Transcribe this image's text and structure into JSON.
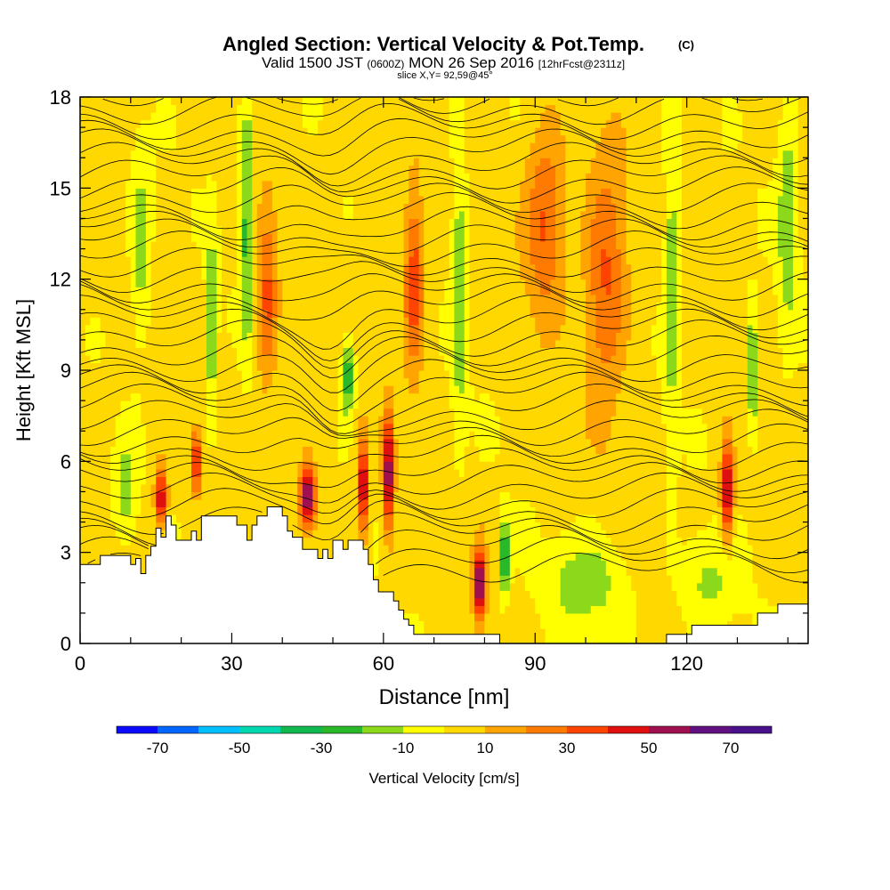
{
  "chart_data": {
    "type": "heatmap",
    "title": "Angled Section: Vertical Velocity & Pot.Temp.",
    "title_suffix": "(C)",
    "subtitle": {
      "prefix": "Valid 1500 JST",
      "utc": "(0600Z)",
      "date": "MON 26 Sep 2016",
      "fcst": "[12hrFcst@2311z]"
    },
    "slice_label": "slice X,Y= 92,59@45°",
    "xlabel": "Distance [nm]",
    "ylabel": "Height [Kft MSL]",
    "xlim": [
      0,
      144
    ],
    "ylim": [
      0,
      18
    ],
    "x_ticks": [
      "0",
      "30",
      "60",
      "90",
      "120"
    ],
    "x_tick_values": [
      0,
      30,
      60,
      90,
      120
    ],
    "y_ticks": [
      "0",
      "3",
      "6",
      "9",
      "12",
      "15",
      "18"
    ],
    "y_tick_values": [
      0,
      3,
      6,
      9,
      12,
      15,
      18
    ],
    "colorbar": {
      "label": "Vertical Velocity [cm/s]",
      "tick_labels": [
        "-70",
        "-50",
        "-30",
        "-10",
        "10",
        "30",
        "50",
        "70"
      ],
      "tick_values": [
        -70,
        -50,
        -30,
        -10,
        10,
        30,
        50,
        70
      ],
      "range": [
        -80,
        80
      ],
      "step": 10,
      "colors": [
        "#0a0aff",
        "#0066ff",
        "#00c0ff",
        "#00d8b0",
        "#10b850",
        "#2ab82a",
        "#8cd81a",
        "#ffff00",
        "#ffd800",
        "#ffa400",
        "#ff7a00",
        "#ff4400",
        "#e01010",
        "#a01050",
        "#601080",
        "#48108a"
      ]
    },
    "terrain_height_kft": [
      [
        0,
        2.6
      ],
      [
        4,
        2.9
      ],
      [
        8,
        2.9
      ],
      [
        10,
        2.6
      ],
      [
        11,
        2.8
      ],
      [
        12,
        2.3
      ],
      [
        13,
        2.9
      ],
      [
        14,
        3.2
      ],
      [
        15,
        3.8
      ],
      [
        16,
        3.5
      ],
      [
        17,
        4.2
      ],
      [
        18,
        3.9
      ],
      [
        19,
        3.4
      ],
      [
        21,
        3.4
      ],
      [
        22,
        3.7
      ],
      [
        23,
        3.4
      ],
      [
        24,
        4.2
      ],
      [
        28,
        4.2
      ],
      [
        31,
        3.9
      ],
      [
        33,
        3.4
      ],
      [
        34,
        3.9
      ],
      [
        35,
        4.2
      ],
      [
        37,
        4.5
      ],
      [
        39,
        4.5
      ],
      [
        40,
        4.2
      ],
      [
        41,
        3.7
      ],
      [
        42,
        3.5
      ],
      [
        44,
        3.1
      ],
      [
        46,
        3.1
      ],
      [
        47,
        2.8
      ],
      [
        48,
        3.1
      ],
      [
        49,
        2.8
      ],
      [
        50,
        3.4
      ],
      [
        52,
        3.1
      ],
      [
        53,
        3.4
      ],
      [
        56,
        3.1
      ],
      [
        57,
        2.6
      ],
      [
        58,
        2.1
      ],
      [
        59,
        1.7
      ],
      [
        61,
        1.7
      ],
      [
        62,
        1.4
      ],
      [
        63,
        1.1
      ],
      [
        64,
        0.8
      ],
      [
        65,
        0.6
      ],
      [
        66,
        0.3
      ],
      [
        80,
        0.3
      ],
      [
        83,
        0.0
      ],
      [
        114,
        0.0
      ],
      [
        116,
        0.3
      ],
      [
        120,
        0.3
      ],
      [
        121,
        0.6
      ],
      [
        131,
        0.6
      ],
      [
        134,
        1.0
      ],
      [
        137,
        1.0
      ],
      [
        138,
        1.3
      ],
      [
        144,
        1.3
      ]
    ],
    "velocity_features": [
      {
        "x": 16,
        "y": 4.8,
        "w_cm_s": 50,
        "sx": 1.2,
        "sy": 1.0
      },
      {
        "x": 23,
        "y": 6.0,
        "w_cm_s": 55,
        "sx": 0.8,
        "sy": 1.0
      },
      {
        "x": 45,
        "y": 4.9,
        "w_cm_s": 60,
        "sx": 1.6,
        "sy": 1.1
      },
      {
        "x": 56,
        "y": 5.2,
        "w_cm_s": 55,
        "sx": 1.0,
        "sy": 1.6
      },
      {
        "x": 61,
        "y": 5.6,
        "w_cm_s": 60,
        "sx": 1.0,
        "sy": 2.0
      },
      {
        "x": 79,
        "y": 2.0,
        "w_cm_s": 60,
        "sx": 1.2,
        "sy": 1.2
      },
      {
        "x": 128,
        "y": 5.0,
        "w_cm_s": 55,
        "sx": 1.2,
        "sy": 1.6
      },
      {
        "x": 66,
        "y": 12.0,
        "w_cm_s": 35,
        "sx": 2.0,
        "sy": 3.0
      },
      {
        "x": 37,
        "y": 11.5,
        "w_cm_s": 30,
        "sx": 2.0,
        "sy": 3.0
      },
      {
        "x": 92,
        "y": 14.0,
        "w_cm_s": 30,
        "sx": 4.0,
        "sy": 3.0
      },
      {
        "x": 104,
        "y": 12.0,
        "w_cm_s": 30,
        "sx": 4.0,
        "sy": 4.0
      },
      {
        "x": 84,
        "y": 2.8,
        "w_cm_s": -40,
        "sx": 1.0,
        "sy": 1.2
      },
      {
        "x": 53,
        "y": 8.8,
        "w_cm_s": -35,
        "sx": 1.2,
        "sy": 1.2
      },
      {
        "x": 33,
        "y": 14.0,
        "w_cm_s": -30,
        "sx": 1.2,
        "sy": 4.0
      },
      {
        "x": 133,
        "y": 9.0,
        "w_cm_s": -30,
        "sx": 1.0,
        "sy": 2.0
      },
      {
        "x": 26,
        "y": 10.5,
        "w_cm_s": -25,
        "sx": 1.0,
        "sy": 3.0
      },
      {
        "x": 9,
        "y": 5.0,
        "w_cm_s": -20,
        "sx": 2.0,
        "sy": 1.5
      },
      {
        "x": 12,
        "y": 13.0,
        "w_cm_s": -20,
        "sx": 2.0,
        "sy": 3.0
      },
      {
        "x": 75,
        "y": 12.0,
        "w_cm_s": -22,
        "sx": 1.5,
        "sy": 5.0
      },
      {
        "x": 117,
        "y": 12.0,
        "w_cm_s": -22,
        "sx": 1.5,
        "sy": 5.0
      },
      {
        "x": 140,
        "y": 14.0,
        "w_cm_s": -20,
        "sx": 2.0,
        "sy": 4.0
      },
      {
        "x": 100,
        "y": 2.0,
        "w_cm_s": -18,
        "sx": 8.0,
        "sy": 1.5
      },
      {
        "x": 124,
        "y": 2.0,
        "w_cm_s": -15,
        "sx": 6.0,
        "sy": 1.5
      }
    ],
    "theta_contours_C": [
      27,
      28,
      29,
      30,
      31,
      32,
      33,
      34,
      35,
      36,
      37,
      38,
      39,
      40,
      41,
      42,
      43,
      44,
      45,
      46,
      47,
      48,
      49,
      50,
      51,
      52,
      53,
      54,
      55,
      56,
      57,
      58,
      59,
      60,
      61,
      62,
      63,
      64,
      65,
      66
    ]
  }
}
